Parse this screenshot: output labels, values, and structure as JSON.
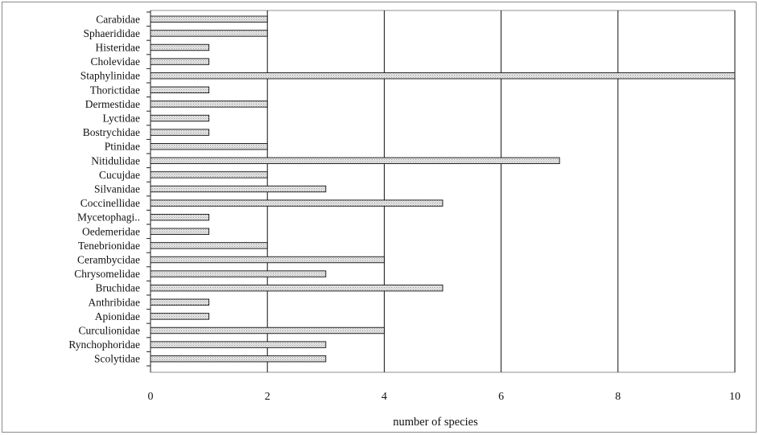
{
  "chart_data": {
    "type": "bar",
    "orientation": "horizontal",
    "title": "",
    "xlabel": "number of species",
    "ylabel": "",
    "xlim": [
      0,
      10
    ],
    "xticks": [
      "0",
      "2",
      "4",
      "6",
      "8",
      "10"
    ],
    "grid": "vertical",
    "legend": "none",
    "bar_color": "#d9d9d9",
    "categories": [
      "Carabidae",
      "Sphaerididae",
      "Histeridae",
      "Cholevidae",
      "Staphylinidae",
      "Thorictidae",
      "Dermestidae",
      "Lyctidae",
      "Bostrychidae",
      "Ptinidae",
      "Nitidulidae",
      "Cucujdae",
      "Silvanidae",
      "Coccinellidae",
      "Mycetophagi..",
      "Oedemeridae",
      "Tenebrionidae",
      "Cerambycidae",
      "Chrysomelidae",
      "Bruchidae",
      "Anthribidae",
      "Apionidae",
      "Curculionidae",
      "Rynchophoridae",
      "Scolytidae"
    ],
    "values": [
      2,
      2,
      1,
      1,
      10,
      1,
      2,
      1,
      1,
      2,
      7,
      2,
      3,
      5,
      1,
      1,
      2,
      4,
      3,
      5,
      1,
      1,
      4,
      3,
      3
    ]
  }
}
